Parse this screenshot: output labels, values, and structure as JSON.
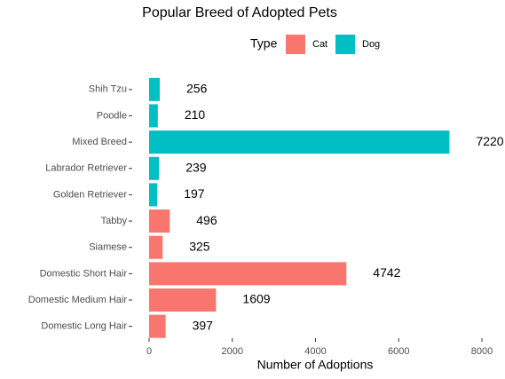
{
  "chart_data": {
    "type": "barh",
    "title": "Popular Breed of Adopted Pets",
    "x_label": "Number of Adoptions",
    "legend_title": "Type",
    "categories": [
      "Shih Tzu",
      "Poodle",
      "Mixed Breed",
      "Labrador Retriever",
      "Golden Retriever",
      "Tabby",
      "Siamese",
      "Domestic Short Hair",
      "Domestic Medium Hair",
      "Domestic Long Hair"
    ],
    "series": [
      {
        "name": "Cat",
        "color": "#f8766d",
        "values": [
          null,
          null,
          null,
          null,
          null,
          496,
          325,
          4742,
          1609,
          397
        ]
      },
      {
        "name": "Dog",
        "color": "#00bfc4",
        "values": [
          256,
          210,
          7220,
          239,
          197,
          null,
          null,
          null,
          null,
          null
        ]
      }
    ],
    "xlim": [
      0,
      8000
    ],
    "xticks": [
      0,
      2000,
      4000,
      6000,
      8000
    ],
    "grid": false,
    "legend_position": "top"
  }
}
